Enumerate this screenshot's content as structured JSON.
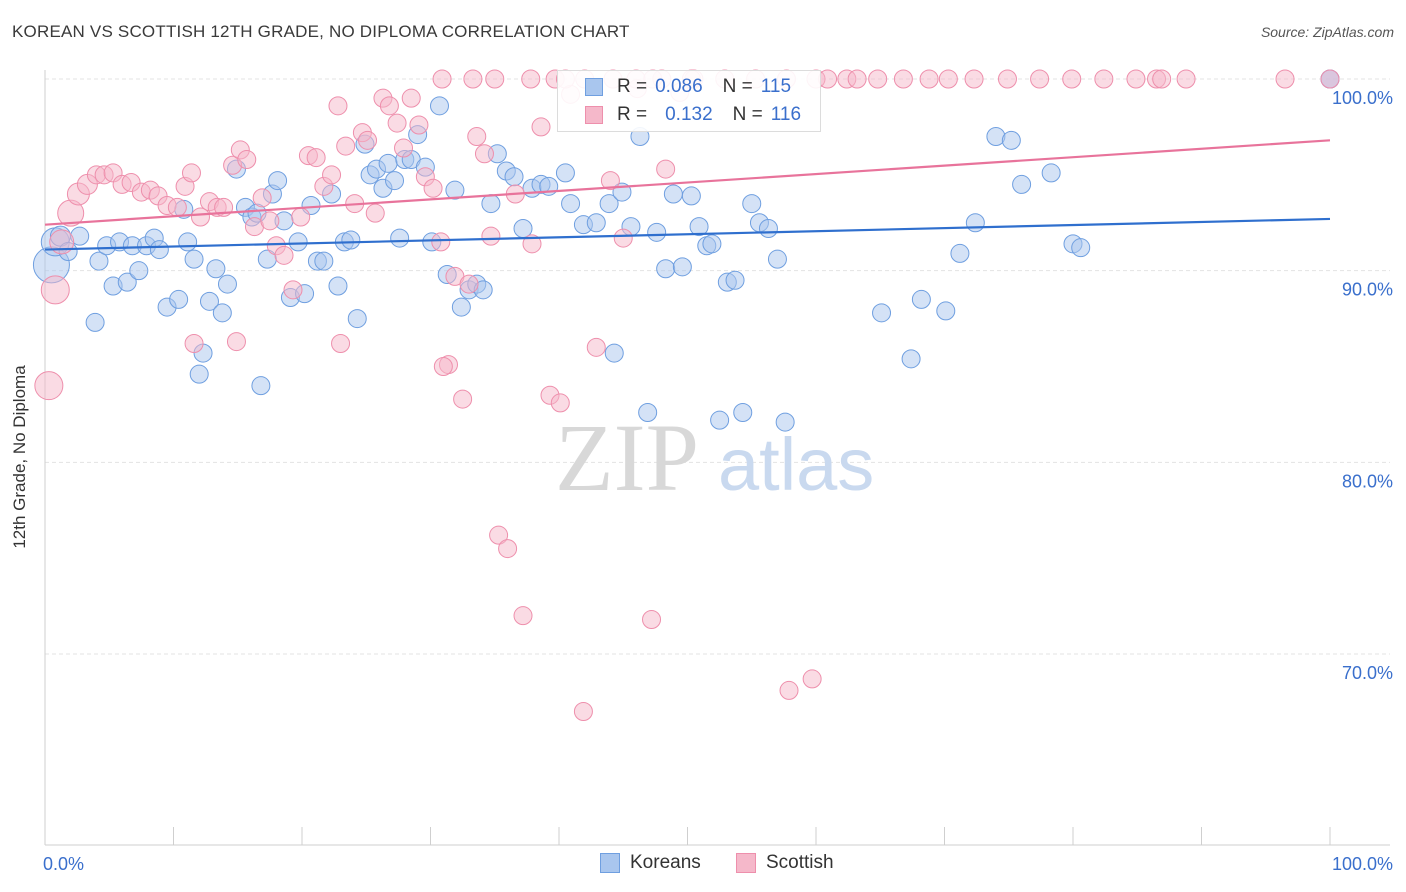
{
  "header": {
    "title": "KOREAN VS SCOTTISH 12TH GRADE, NO DIPLOMA CORRELATION CHART",
    "source": "Source: ZipAtlas.com"
  },
  "watermark": {
    "zip": "ZIP",
    "atlas": "atlas"
  },
  "legend": {
    "rows": [
      {
        "r_label": "R =",
        "r_value": "0.086",
        "n_label": "N =",
        "n_value": "115"
      },
      {
        "r_label": "R =",
        "r_value": "0.132",
        "n_label": "N =",
        "n_value": "116"
      }
    ]
  },
  "bottom_legend": {
    "koreans": "Koreans",
    "scottish": "Scottish"
  },
  "colors": {
    "korean_fill": "#a9c6ee",
    "korean_stroke": "#6f9fe0",
    "korean_line": "#2f6fce",
    "scottish_fill": "#f5b8ca",
    "scottish_stroke": "#ee8fac",
    "scottish_line": "#e8739b",
    "tick_text": "#3a6fcc",
    "grid": "#e3e3e3"
  },
  "chart_data": {
    "type": "scatter",
    "title": "KOREAN VS SCOTTISH 12TH GRADE, NO DIPLOMA CORRELATION CHART",
    "xlabel": "",
    "ylabel": "12th Grade, No Diploma",
    "xlim": [
      0,
      100
    ],
    "ylim": [
      59,
      101
    ],
    "x_tick_labels": [
      "0.0%",
      "100.0%"
    ],
    "y_ticks": [
      70,
      80,
      90,
      100
    ],
    "y_tick_labels": [
      "70.0%",
      "80.0%",
      "90.0%",
      "100.0%"
    ],
    "grid": true,
    "legend_placement": "top-center",
    "series": [
      {
        "name": "Koreans",
        "r": 0.086,
        "n": 115,
        "trend": {
          "x": [
            0,
            100
          ],
          "y": [
            91.1,
            92.7
          ]
        },
        "points": [
          [
            0.5,
            90.3,
            18
          ],
          [
            0.8,
            91.5,
            14
          ],
          [
            1.2,
            91.8,
            10
          ],
          [
            1.8,
            91.0,
            9
          ],
          [
            2.7,
            91.8,
            9
          ],
          [
            3.9,
            87.3,
            9
          ],
          [
            4.2,
            90.5,
            9
          ],
          [
            4.8,
            91.3,
            9
          ],
          [
            5.3,
            89.2,
            9
          ],
          [
            5.8,
            91.5,
            9
          ],
          [
            6.4,
            89.4,
            9
          ],
          [
            6.8,
            91.3,
            9
          ],
          [
            7.3,
            90.0,
            9
          ],
          [
            7.9,
            91.3,
            9
          ],
          [
            8.5,
            91.7,
            9
          ],
          [
            8.9,
            91.1,
            9
          ],
          [
            9.5,
            88.1,
            9
          ],
          [
            10.4,
            88.5,
            9
          ],
          [
            10.8,
            93.2,
            9
          ],
          [
            11.1,
            91.5,
            9
          ],
          [
            11.6,
            90.6,
            9
          ],
          [
            12.0,
            84.6,
            9
          ],
          [
            12.3,
            85.7,
            9
          ],
          [
            12.8,
            88.4,
            9
          ],
          [
            13.3,
            90.1,
            9
          ],
          [
            13.8,
            87.8,
            9
          ],
          [
            14.2,
            89.3,
            9
          ],
          [
            14.9,
            95.3,
            9
          ],
          [
            15.6,
            93.3,
            9
          ],
          [
            16.1,
            92.8,
            9
          ],
          [
            16.5,
            93.0,
            9
          ],
          [
            16.8,
            84.0,
            9
          ],
          [
            17.3,
            90.6,
            9
          ],
          [
            17.7,
            94.0,
            9
          ],
          [
            18.1,
            94.7,
            9
          ],
          [
            18.6,
            92.6,
            9
          ],
          [
            19.1,
            88.6,
            9
          ],
          [
            19.7,
            91.5,
            9
          ],
          [
            20.2,
            88.8,
            9
          ],
          [
            20.7,
            93.4,
            9
          ],
          [
            21.2,
            90.5,
            9
          ],
          [
            21.7,
            90.5,
            9
          ],
          [
            22.3,
            94.0,
            9
          ],
          [
            22.8,
            89.2,
            9
          ],
          [
            23.3,
            91.5,
            9
          ],
          [
            23.8,
            91.6,
            9
          ],
          [
            24.3,
            87.5,
            9
          ],
          [
            24.9,
            96.6,
            9
          ],
          [
            25.3,
            95.0,
            9
          ],
          [
            25.8,
            95.3,
            9
          ],
          [
            26.3,
            94.3,
            9
          ],
          [
            26.7,
            95.6,
            9
          ],
          [
            27.2,
            94.7,
            9
          ],
          [
            27.6,
            91.7,
            9
          ],
          [
            28.0,
            95.8,
            9
          ],
          [
            28.5,
            95.8,
            9
          ],
          [
            29.0,
            97.1,
            9
          ],
          [
            29.6,
            95.4,
            9
          ],
          [
            30.1,
            91.5,
            9
          ],
          [
            30.7,
            98.6,
            9
          ],
          [
            31.3,
            89.8,
            9
          ],
          [
            31.9,
            94.2,
            9
          ],
          [
            32.4,
            88.1,
            9
          ],
          [
            33.0,
            89.0,
            9
          ],
          [
            33.6,
            89.3,
            9
          ],
          [
            34.1,
            89.0,
            9
          ],
          [
            34.7,
            93.5,
            9
          ],
          [
            35.2,
            96.1,
            9
          ],
          [
            35.9,
            95.2,
            9
          ],
          [
            36.5,
            94.9,
            9
          ],
          [
            37.2,
            92.2,
            9
          ],
          [
            37.9,
            94.3,
            9
          ],
          [
            38.6,
            94.5,
            9
          ],
          [
            39.2,
            94.4,
            9
          ],
          [
            40.5,
            95.1,
            9
          ],
          [
            40.9,
            93.5,
            9
          ],
          [
            41.9,
            92.4,
            9
          ],
          [
            42.9,
            92.5,
            9
          ],
          [
            43.9,
            93.5,
            9
          ],
          [
            44.3,
            85.7,
            9
          ],
          [
            44.9,
            94.1,
            9
          ],
          [
            45.6,
            92.3,
            9
          ],
          [
            46.3,
            97.0,
            9
          ],
          [
            46.9,
            82.6,
            9
          ],
          [
            47.6,
            92.0,
            9
          ],
          [
            48.3,
            90.1,
            9
          ],
          [
            48.9,
            94.0,
            9
          ],
          [
            49.6,
            90.2,
            9
          ],
          [
            50.3,
            93.9,
            9
          ],
          [
            50.9,
            92.3,
            9
          ],
          [
            51.5,
            91.3,
            9
          ],
          [
            51.9,
            91.4,
            9
          ],
          [
            52.5,
            82.2,
            9
          ],
          [
            53.1,
            89.4,
            9
          ],
          [
            53.7,
            89.5,
            9
          ],
          [
            54.3,
            82.6,
            9
          ],
          [
            55.0,
            93.5,
            9
          ],
          [
            55.6,
            92.5,
            9
          ],
          [
            56.3,
            92.2,
            9
          ],
          [
            57.0,
            90.6,
            9
          ],
          [
            57.6,
            82.1,
            9
          ],
          [
            65.1,
            87.8,
            9
          ],
          [
            67.4,
            85.4,
            9
          ],
          [
            68.2,
            88.5,
            9
          ],
          [
            70.1,
            87.9,
            9
          ],
          [
            71.2,
            90.9,
            9
          ],
          [
            72.4,
            92.5,
            9
          ],
          [
            74.0,
            97.0,
            9
          ],
          [
            75.2,
            96.8,
            9
          ],
          [
            76.0,
            94.5,
            9
          ],
          [
            78.3,
            95.1,
            9
          ],
          [
            80.0,
            91.4,
            9
          ],
          [
            80.6,
            91.2,
            9
          ],
          [
            100.0,
            100.0,
            9
          ],
          [
            100.0,
            100.0,
            9
          ]
        ]
      },
      {
        "name": "Scottish",
        "r": 0.132,
        "n": 116,
        "trend": {
          "x": [
            0,
            100
          ],
          "y": [
            92.4,
            96.8
          ]
        },
        "points": [
          [
            0.3,
            84.0,
            14
          ],
          [
            0.8,
            89.0,
            14
          ],
          [
            1.3,
            91.5,
            12
          ],
          [
            2.0,
            93.0,
            13
          ],
          [
            2.6,
            94.0,
            11
          ],
          [
            3.3,
            94.5,
            10
          ],
          [
            4.0,
            95.0,
            9
          ],
          [
            4.6,
            95.0,
            9
          ],
          [
            5.3,
            95.1,
            9
          ],
          [
            6.0,
            94.5,
            9
          ],
          [
            6.7,
            94.6,
            9
          ],
          [
            7.5,
            94.1,
            9
          ],
          [
            8.2,
            94.2,
            9
          ],
          [
            8.8,
            93.9,
            9
          ],
          [
            9.5,
            93.4,
            9
          ],
          [
            10.3,
            93.3,
            9
          ],
          [
            10.9,
            94.4,
            9
          ],
          [
            11.4,
            95.1,
            9
          ],
          [
            12.1,
            92.8,
            9
          ],
          [
            12.8,
            93.6,
            9
          ],
          [
            13.4,
            93.3,
            9
          ],
          [
            13.9,
            93.3,
            9
          ],
          [
            14.6,
            95.5,
            9
          ],
          [
            15.2,
            96.3,
            9
          ],
          [
            15.7,
            95.8,
            9
          ],
          [
            16.3,
            92.3,
            9
          ],
          [
            16.9,
            93.8,
            9
          ],
          [
            17.5,
            92.6,
            9
          ],
          [
            18.0,
            91.3,
            9
          ],
          [
            18.6,
            90.8,
            9
          ],
          [
            19.3,
            89.0,
            9
          ],
          [
            19.9,
            92.8,
            9
          ],
          [
            20.5,
            96.0,
            9
          ],
          [
            21.1,
            95.9,
            9
          ],
          [
            21.7,
            94.4,
            9
          ],
          [
            22.3,
            95.0,
            9
          ],
          [
            22.8,
            98.6,
            9
          ],
          [
            23.4,
            96.5,
            9
          ],
          [
            24.1,
            93.5,
            9
          ],
          [
            24.7,
            97.2,
            9
          ],
          [
            25.1,
            96.8,
            9
          ],
          [
            25.7,
            93.0,
            9
          ],
          [
            26.3,
            99.0,
            9
          ],
          [
            26.8,
            98.6,
            9
          ],
          [
            27.4,
            97.7,
            9
          ],
          [
            27.9,
            96.4,
            9
          ],
          [
            28.5,
            99.0,
            9
          ],
          [
            29.1,
            97.6,
            9
          ],
          [
            29.6,
            94.9,
            9
          ],
          [
            30.2,
            94.3,
            9
          ],
          [
            30.8,
            91.5,
            9
          ],
          [
            31.4,
            85.1,
            9
          ],
          [
            31.9,
            89.7,
            9
          ],
          [
            32.5,
            83.3,
            9
          ],
          [
            33.0,
            89.3,
            9
          ],
          [
            33.6,
            97.0,
            9
          ],
          [
            34.2,
            96.1,
            9
          ],
          [
            34.7,
            91.8,
            9
          ],
          [
            35.3,
            76.2,
            9
          ],
          [
            36.0,
            75.5,
            9
          ],
          [
            36.6,
            94.0,
            9
          ],
          [
            37.2,
            72.0,
            9
          ],
          [
            37.9,
            91.4,
            9
          ],
          [
            38.6,
            97.5,
            9
          ],
          [
            39.3,
            83.5,
            9
          ],
          [
            40.1,
            83.1,
            9
          ],
          [
            40.9,
            99.2,
            9
          ],
          [
            41.9,
            67.0,
            9
          ],
          [
            42.9,
            86.0,
            9
          ],
          [
            44.0,
            94.7,
            9
          ],
          [
            45.0,
            91.7,
            9
          ],
          [
            46.1,
            99.5,
            9
          ],
          [
            47.2,
            71.8,
            9
          ],
          [
            48.3,
            95.3,
            9
          ],
          [
            49.4,
            99.3,
            9
          ],
          [
            57.9,
            68.1,
            9
          ],
          [
            59.7,
            68.7,
            9
          ],
          [
            11.6,
            86.2,
            9
          ],
          [
            14.9,
            86.3,
            9
          ],
          [
            23.0,
            86.2,
            9
          ],
          [
            31.0,
            85.0,
            9
          ],
          [
            33.3,
            100.0,
            9
          ],
          [
            35.0,
            100.0,
            9
          ],
          [
            37.8,
            100.0,
            9
          ],
          [
            39.7,
            100.0,
            9
          ],
          [
            42.0,
            100.0,
            9
          ],
          [
            44.2,
            100.0,
            9
          ],
          [
            46.0,
            100.0,
            9
          ],
          [
            48.0,
            100.0,
            9
          ],
          [
            50.5,
            100.0,
            9
          ],
          [
            52.9,
            100.0,
            9
          ],
          [
            55.3,
            100.0,
            9
          ],
          [
            57.7,
            100.0,
            9
          ],
          [
            60.0,
            100.0,
            9
          ],
          [
            62.4,
            100.0,
            9
          ],
          [
            63.2,
            100.0,
            9
          ],
          [
            64.8,
            100.0,
            9
          ],
          [
            66.8,
            100.0,
            9
          ],
          [
            68.8,
            100.0,
            9
          ],
          [
            72.3,
            100.0,
            9
          ],
          [
            74.9,
            100.0,
            9
          ],
          [
            77.4,
            100.0,
            9
          ],
          [
            79.9,
            100.0,
            9
          ],
          [
            82.4,
            100.0,
            9
          ],
          [
            84.9,
            100.0,
            9
          ],
          [
            86.5,
            100.0,
            9
          ],
          [
            88.8,
            100.0,
            9
          ],
          [
            100.0,
            100.0,
            9
          ],
          [
            47.3,
            100.0,
            9
          ],
          [
            50.3,
            100.0,
            9
          ],
          [
            30.9,
            100.0,
            9
          ],
          [
            40.5,
            100.0,
            9
          ],
          [
            60.9,
            100.0,
            9
          ],
          [
            70.3,
            100.0,
            9
          ],
          [
            86.9,
            100.0,
            9
          ],
          [
            96.5,
            100.0,
            9
          ]
        ]
      }
    ]
  }
}
